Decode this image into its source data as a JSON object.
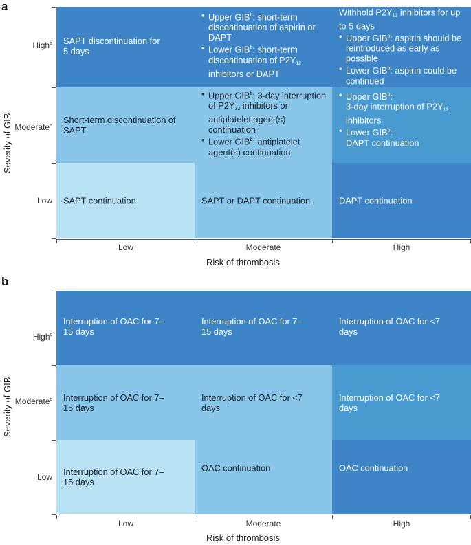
{
  "colors": {
    "lightest": "#b8e1f4",
    "light": "#8ac6e9",
    "mid": "#4a9ad2",
    "dark": "#3d85c6",
    "text_light_cells": "#1b2630",
    "text_dark_cells": "#ffffff"
  },
  "panel_a": {
    "letter": "a",
    "y_axis_label": "Severity of GIB",
    "x_axis_label": "Risk of thrombosis",
    "rows": [
      {
        "label": "High",
        "sup": "a"
      },
      {
        "label": "Moderate",
        "sup": "a"
      },
      {
        "label": "Low",
        "sup": ""
      }
    ],
    "columns": [
      "Low",
      "Moderate",
      "High"
    ],
    "cells": {
      "high_low": "SAPT discontinuation for 5 days",
      "high_moderate": [
        {
          "pre": "Upper GIB",
          "sup": "b",
          "text": ": short-term discontinuation of aspirin or DAPT"
        },
        {
          "pre": "Lower GIB",
          "sup": "b",
          "text": ": short-term discontinuation of P2Y",
          "sub": "12",
          "post": " inhibitors or DAPT"
        }
      ],
      "high_high_intro_pre": "Withhold P2Y",
      "high_high_intro_sub": "12",
      "high_high_intro_post": " inhibitors for up to 5 days",
      "high_high": [
        {
          "pre": "Upper GIB",
          "sup": "b",
          "text": ": aspirin should be reintroduced as early as possible"
        },
        {
          "pre": "Lower GIB",
          "sup": "b",
          "text": ": aspirin could be continued"
        }
      ],
      "moderate_low": "Short-term discontinuation of SAPT",
      "moderate_moderate": [
        {
          "pre": "Upper GIB",
          "sup": "b",
          "text": ": 3-day interruption of P2Y",
          "sub": "12",
          "post": " inhibitors or antiplatelet agent(s) continuation"
        },
        {
          "pre": "Lower GIB",
          "sup": "b",
          "text": ": antiplatelet agent(s) continuation"
        }
      ],
      "moderate_high": [
        {
          "pre": "Upper GIB",
          "sup": "b",
          "text": ":",
          "line2": "3-day interruption of P2Y",
          "sub": "12",
          "post": " inhibitors"
        },
        {
          "pre": "Lower GIB",
          "sup": "b",
          "text": ":",
          "line2": "DAPT continuation"
        }
      ],
      "low_low": "SAPT continuation",
      "low_moderate": "SAPT or DAPT continuation",
      "low_high": "DAPT continuation"
    }
  },
  "panel_b": {
    "letter": "b",
    "y_axis_label": "Severity of GIB",
    "x_axis_label": "Risk of thrombosis",
    "rows": [
      {
        "label": "High",
        "sup": "c"
      },
      {
        "label": "Moderate",
        "sup": "c"
      },
      {
        "label": "Low",
        "sup": ""
      }
    ],
    "columns": [
      "Low",
      "Moderate",
      "High"
    ],
    "cells": {
      "high_low": "Interruption of OAC for 7–15 days",
      "high_moderate": "Interruption of OAC for 7–15 days",
      "high_high": "Interruption of OAC for <7 days",
      "moderate_low": "Interruption of OAC for 7–15 days",
      "moderate_moderate": "Interruption of OAC for <7 days",
      "moderate_high": "Interruption of OAC for <7 days",
      "low_low": "Interruption of OAC for 7–15 days",
      "low_moderate": "OAC continuation",
      "low_high": "OAC continuation"
    }
  }
}
